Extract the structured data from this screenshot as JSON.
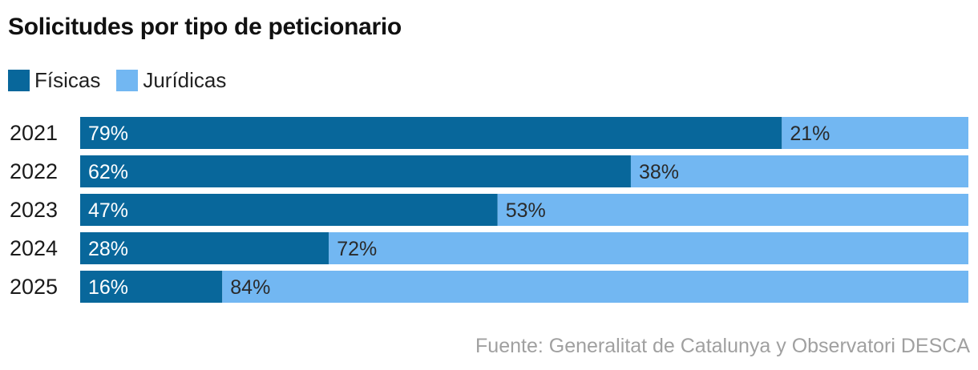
{
  "chart_data": {
    "type": "bar",
    "orientation": "horizontal",
    "stacked": true,
    "percent": true,
    "title": "Solicitudes por tipo de peticionario",
    "categories": [
      "2021",
      "2022",
      "2023",
      "2024",
      "2025"
    ],
    "series": [
      {
        "name": "Físicas",
        "values": [
          79,
          62,
          47,
          28,
          16
        ],
        "color": "#08679b"
      },
      {
        "name": "Jurídicas",
        "values": [
          21,
          38,
          53,
          72,
          84
        ],
        "color": "#72b7f2"
      }
    ],
    "xlim": [
      0,
      100
    ],
    "grid": false,
    "legend": "top-left",
    "value_labels": {
      "Físicas": [
        "79%",
        "62%",
        "47%",
        "28%",
        "16%"
      ],
      "Jurídicas": [
        "21%",
        "38%",
        "53%",
        "72%",
        "84%"
      ]
    },
    "source": "Fuente: Generalitat de Catalunya y Observatori DESCA"
  }
}
